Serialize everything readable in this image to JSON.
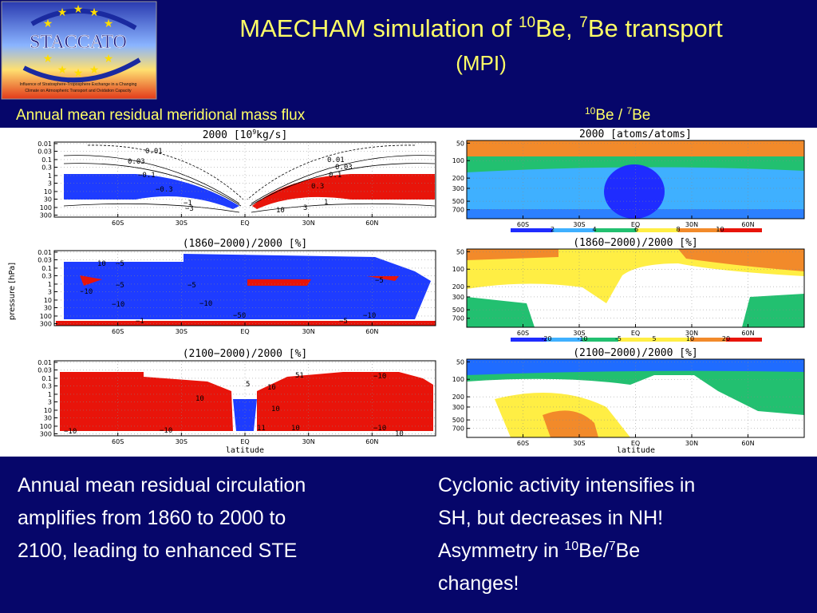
{
  "header": {
    "title": [
      "MAECHAM simulation of ",
      "10",
      "Be, ",
      "7",
      "Be transport"
    ],
    "subtitle": "(MPI)"
  },
  "logo": {
    "name": "STACCATO",
    "caption": [
      "Influence of Stratosphere-Troposphere Exchange in a Changing",
      "Climate on Atmospheric Transport and Oxidation Capacity"
    ]
  },
  "left_heading": "Annual mean residual meridional mass flux",
  "right_heading": [
    "10",
    "Be / ",
    "7",
    "Be"
  ],
  "left_panels": {
    "titles": [
      [
        "2000 [10",
        "9",
        "kg/s]"
      ],
      [
        "(1860−2000)/2000 [%]"
      ],
      [
        "(2100−2000)/2000 [%]"
      ]
    ],
    "ylabel": "pressure [hPa]",
    "xlabel": "latitude",
    "log": true,
    "ylim": [
      0.008,
      400
    ],
    "yticks": [
      0.01,
      0.03,
      0.1,
      0.3,
      1,
      3,
      10,
      30,
      100,
      300
    ],
    "xlim": [
      -90,
      90
    ],
    "xticks": [
      {
        "value": -60,
        "label": "60S"
      },
      {
        "value": -30,
        "label": "30S"
      },
      {
        "value": 0,
        "label": "EQ"
      },
      {
        "value": 30,
        "label": "30N"
      },
      {
        "value": 60,
        "label": "60N"
      }
    ],
    "contour_labels": [
      [
        "0.01",
        "0.03",
        "0.01",
        "0.03",
        "−0.1",
        "0.1",
        "−0.3",
        "0.3",
        "−1",
        "1",
        "−3",
        "10",
        "3"
      ],
      [
        "10",
        "−5",
        "−5",
        "−10",
        "−5",
        "−10",
        "−5",
        "−10",
        "−1",
        "−50",
        "−10",
        "−5"
      ],
      [
        "−10",
        "5",
        "−10",
        "10",
        "51",
        "10",
        "10",
        "10",
        "−10",
        "10",
        "11",
        "−10"
      ]
    ]
  },
  "right_panels": {
    "titles": [
      "2000 [atoms/atoms]",
      "(1860−2000)/2000 [%]",
      "(2100−2000)/2000 [%]"
    ],
    "xlabel": "latitude",
    "log": true,
    "ylim": [
      45,
      1000
    ],
    "yticks": [
      50,
      100,
      200,
      300,
      500,
      700
    ],
    "xlim": [
      -90,
      90
    ],
    "xticks": [
      {
        "value": -60,
        "label": "60S"
      },
      {
        "value": -30,
        "label": "30S"
      },
      {
        "value": 0,
        "label": "EQ"
      },
      {
        "value": 30,
        "label": "30N"
      },
      {
        "value": 60,
        "label": "60N"
      }
    ],
    "colorbars": [
      [
        2,
        4,
        6,
        8,
        10
      ],
      [
        -20,
        -10,
        -5,
        5,
        10,
        20
      ]
    ]
  },
  "left_text": [
    "Annual mean residual circulation",
    "amplifies from 1860 to 2000 to",
    "2100, leading to enhanced STE"
  ],
  "right_text": [
    [
      "Cyclonic activity intensifies in"
    ],
    [
      "SH, but decreases in NH!"
    ],
    [
      "Asymmetry in ",
      "10",
      "Be/",
      "7",
      "Be"
    ],
    [
      "changes!"
    ]
  ]
}
